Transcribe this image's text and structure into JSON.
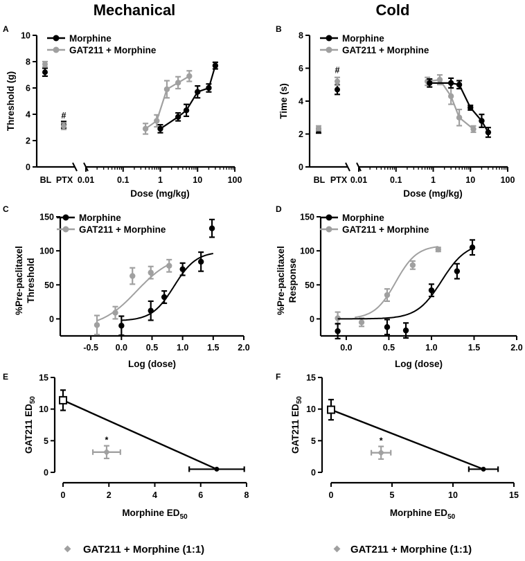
{
  "columns": {
    "left": "Mechanical",
    "right": "Cold"
  },
  "colors": {
    "morphine": "#000000",
    "combo": "#a0a0a0"
  },
  "chart_data": [
    {
      "id": "A",
      "type": "line",
      "panel_label": "A",
      "ylabel": "Threshold (g)",
      "xlabel": "Dose  (mg/kg)",
      "yticks": [
        0,
        2,
        4,
        6,
        8,
        10
      ],
      "ylim": [
        0,
        10
      ],
      "xscale": "log",
      "xticks": [
        "0.01",
        "0.1",
        "1",
        "10",
        "100"
      ],
      "baseline_labels": [
        "BL",
        "PTX"
      ],
      "legend": [
        "Morphine",
        "GAT211 + Morphine"
      ],
      "annotation": "#",
      "baseline": {
        "morphine": {
          "BL": [
            7.2,
            0.25
          ],
          "PTX": [
            3.2,
            0.2
          ]
        },
        "combo": {
          "BL": [
            7.8,
            0.15
          ],
          "PTX": [
            3.1,
            0.2
          ]
        }
      },
      "series": [
        {
          "name": "Morphine",
          "x": [
            1,
            3,
            5,
            10,
            20,
            30
          ],
          "y": [
            2.9,
            3.8,
            4.3,
            5.7,
            6.0,
            7.7
          ],
          "err": [
            0.25,
            0.25,
            0.4,
            0.4,
            0.25,
            0.2
          ]
        },
        {
          "name": "GAT211 + Morphine",
          "x": [
            0.4,
            0.8,
            1.5,
            3,
            6
          ],
          "y": [
            2.9,
            3.5,
            5.9,
            6.4,
            6.9
          ],
          "err": [
            0.35,
            0.4,
            0.6,
            0.4,
            0.35
          ]
        }
      ]
    },
    {
      "id": "B",
      "type": "line",
      "panel_label": "B",
      "ylabel": "Time  (s)",
      "xlabel": "Dose  (mg/kg)",
      "yticks": [
        0,
        2,
        4,
        6,
        8
      ],
      "ylim": [
        0,
        8
      ],
      "xscale": "log",
      "xticks": [
        "0.01",
        "0.1",
        "1",
        "10",
        "100"
      ],
      "baseline_labels": [
        "BL",
        "PTX"
      ],
      "legend": [
        "Morphine",
        "GAT211 + Morphine"
      ],
      "annotation": "#",
      "baseline": {
        "morphine": {
          "BL": [
            2.2,
            0.1
          ],
          "PTX": [
            4.7,
            0.25
          ]
        },
        "combo": {
          "BL": [
            2.35,
            0.1
          ],
          "PTX": [
            5.2,
            0.2
          ]
        }
      },
      "series": [
        {
          "name": "Morphine",
          "x": [
            0.8,
            3,
            5,
            10,
            20,
            30
          ],
          "y": [
            5.1,
            5.1,
            5.0,
            3.6,
            2.8,
            2.1
          ],
          "err": [
            0.2,
            0.25,
            0.2,
            0.1,
            0.35,
            0.25
          ]
        },
        {
          "name": "GAT211 + Morphine",
          "x": [
            0.7,
            1.5,
            3,
            5,
            12
          ],
          "y": [
            5.2,
            5.3,
            4.3,
            3.0,
            2.3
          ],
          "err": [
            0.2,
            0.25,
            0.45,
            0.45,
            0.15
          ]
        }
      ]
    },
    {
      "id": "C",
      "type": "line",
      "panel_label": "C",
      "ylabel": [
        "%Pre-paclitaxel",
        "Threshold"
      ],
      "xlabel": "Log  (dose)",
      "yticks": [
        0,
        50,
        100,
        150
      ],
      "ylim": [
        -25,
        150
      ],
      "xticks": [
        -0.5,
        0.0,
        0.5,
        1.0,
        1.5,
        2.0
      ],
      "xlim": [
        -1.0,
        2.0
      ],
      "legend": [
        "Morphine",
        "GAT211 + Morphine"
      ],
      "series": [
        {
          "name": "Morphine",
          "x": [
            0.0,
            0.48,
            0.7,
            1.0,
            1.3,
            1.48
          ],
          "y": [
            -10,
            12,
            32,
            73,
            84,
            133
          ],
          "err": [
            14,
            14,
            9,
            9,
            14,
            13
          ],
          "fit": {
            "bottom": -3,
            "top": 99,
            "logEC50": 0.86,
            "hill": 2.4,
            "from": 0.0,
            "to": 1.5
          }
        },
        {
          "name": "GAT211 + Morphine",
          "x": [
            -0.4,
            -0.1,
            0.18,
            0.48,
            0.78
          ],
          "y": [
            -9,
            9,
            63,
            68,
            78
          ],
          "err": [
            14,
            9,
            12,
            9,
            9
          ],
          "fit": {
            "bottom": -13,
            "top": 95,
            "logEC50": 0.25,
            "hill": 1.5,
            "from": -0.4,
            "to": 0.78
          }
        }
      ]
    },
    {
      "id": "D",
      "type": "line",
      "panel_label": "D",
      "ylabel": [
        "%Pre-paclitaxel",
        "Response"
      ],
      "xlabel": "Log  (dose)",
      "yticks": [
        0,
        50,
        100,
        150
      ],
      "ylim": [
        -25,
        150
      ],
      "xticks": [
        0.0,
        0.5,
        1.0,
        1.5,
        2.0
      ],
      "xlim": [
        -0.3,
        2.0
      ],
      "legend": [
        "Morphine",
        "GAT211 + Morphine"
      ],
      "series": [
        {
          "name": "Morphine",
          "x": [
            -0.1,
            0.48,
            0.7,
            1.0,
            1.3,
            1.48
          ],
          "y": [
            -18,
            -12,
            -17,
            42,
            70,
            105
          ],
          "err": [
            11,
            11,
            11,
            9,
            11,
            11
          ],
          "fit": {
            "bottom": 0,
            "top": 112,
            "logEC50": 1.12,
            "hill": 3.0,
            "from": -0.1,
            "to": 1.5
          }
        },
        {
          "name": "GAT211 + Morphine",
          "x": [
            -0.1,
            0.18,
            0.48,
            0.78,
            1.08
          ],
          "y": [
            1,
            -5,
            35,
            79,
            102
          ],
          "err": [
            9,
            6,
            9,
            6,
            3
          ],
          "fit": {
            "bottom": 0,
            "top": 108,
            "logEC50": 0.58,
            "hill": 3.5,
            "from": 0.1,
            "to": 1.08
          }
        }
      ]
    },
    {
      "id": "E",
      "type": "scatter",
      "panel_label": "E",
      "ylabel": "GAT211 ED",
      "ylabel_sub": "50",
      "xlabel": "Morphine ED",
      "xlabel_sub": "50",
      "yticks": [
        0,
        5,
        10,
        15
      ],
      "ylim": [
        0,
        15
      ],
      "xticks": [
        0,
        2,
        4,
        6,
        8
      ],
      "xlim": [
        0,
        8
      ],
      "annotation": "*",
      "isobole": {
        "gat_ed50": [
          0,
          11.4,
          1.6
        ],
        "morphine_ed50": [
          6.7,
          0.5,
          1.2
        ]
      },
      "combo_point": {
        "x": 1.9,
        "y": 3.2,
        "xerr": 0.6,
        "yerr": 1.0
      }
    },
    {
      "id": "F",
      "type": "scatter",
      "panel_label": "F",
      "ylabel": "GAT211 ED",
      "ylabel_sub": "50",
      "xlabel": "Morphine ED",
      "xlabel_sub": "50",
      "yticks": [
        0,
        5,
        10,
        15
      ],
      "ylim": [
        0,
        15
      ],
      "xticks": [
        0,
        5,
        10,
        15
      ],
      "xlim": [
        0,
        15
      ],
      "annotation": "*",
      "isobole": {
        "gat_ed50": [
          0,
          9.9,
          1.6
        ],
        "morphine_ed50": [
          12.5,
          0.5,
          1.2
        ]
      },
      "combo_point": {
        "x": 4.1,
        "y": 3.1,
        "xerr": 0.8,
        "yerr": 1.0
      }
    }
  ],
  "bottom_legend": {
    "text": "GAT211 + Morphine (1:1)"
  }
}
